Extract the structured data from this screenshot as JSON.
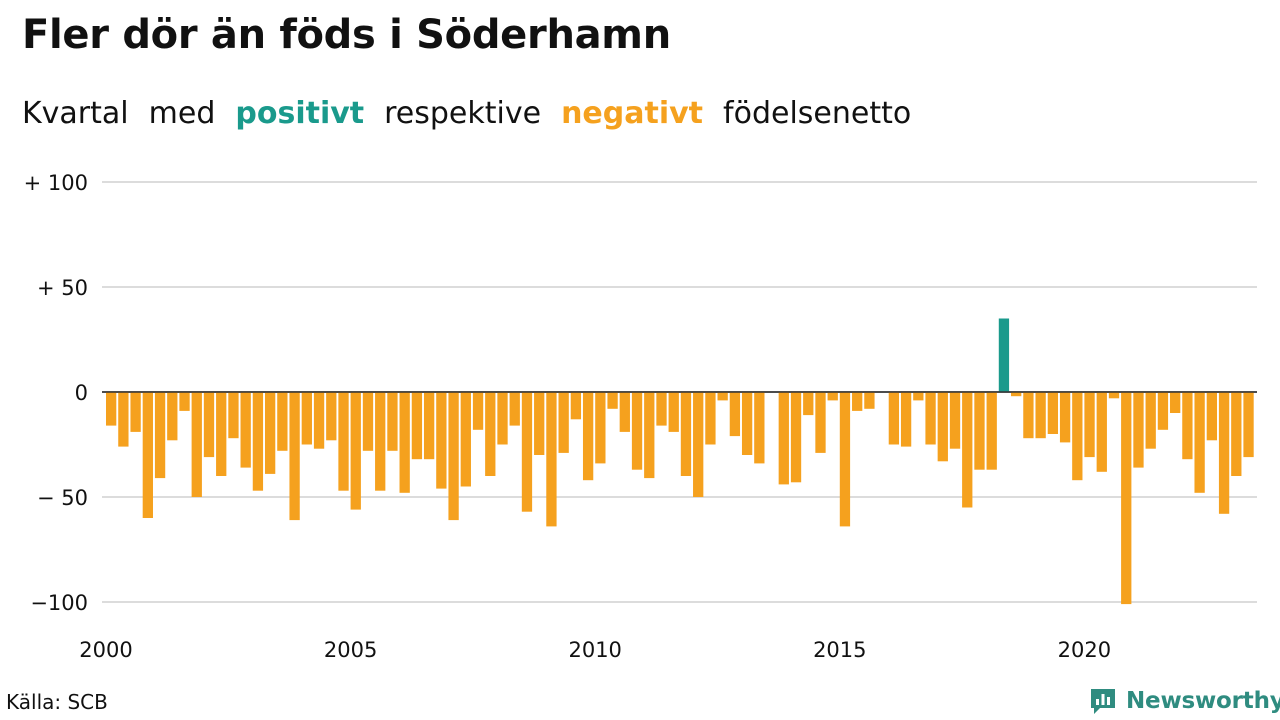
{
  "header": {
    "title": "Fler dör än föds i Söderhamn",
    "subtitle_words": [
      "Kvartal",
      "med",
      "positivt",
      "respektive",
      "negativt",
      "födelsenetto"
    ]
  },
  "footer": {
    "source": "Källa: SCB",
    "brand": "Newsworthy",
    "brand_icon": "bar-chart-speech-bubble-icon"
  },
  "colors": {
    "positive": "#1a9a8c",
    "negative": "#f5a11e",
    "grid": "#dcdcdc",
    "brand": "#2f8c80"
  },
  "chart_data": {
    "type": "bar",
    "title": "Fler dör än föds i Söderhamn",
    "subtitle": "Kvartal med positivt respektive negativt födelsenetto",
    "xlabel": "",
    "ylabel": "",
    "ylim": [
      -100,
      100
    ],
    "yticks": [
      {
        "value": 100,
        "label": "+ 100"
      },
      {
        "value": 50,
        "label": "+  50"
      },
      {
        "value": 0,
        "label": "0"
      },
      {
        "value": -50,
        "label": "− 50"
      },
      {
        "value": -100,
        "label": "−100"
      }
    ],
    "x_start": "2000",
    "x_step": "quarter",
    "xticks": [
      "2000",
      "2005",
      "2010",
      "2015",
      "2020"
    ],
    "grid": true,
    "values": [
      -16,
      -26,
      -19,
      -60,
      -41,
      -23,
      -9,
      -50,
      -31,
      -40,
      -22,
      -36,
      -47,
      -39,
      -28,
      -61,
      -25,
      -27,
      -23,
      -47,
      -56,
      -28,
      -47,
      -28,
      -48,
      -32,
      -32,
      -46,
      -61,
      -45,
      -18,
      -40,
      -25,
      -16,
      -57,
      -30,
      -64,
      -29,
      -13,
      -42,
      -34,
      -8,
      -19,
      -37,
      -41,
      -16,
      -19,
      -40,
      -50,
      -25,
      -4,
      -21,
      -30,
      -34,
      0,
      -44,
      -43,
      -11,
      -29,
      -4,
      -64,
      -9,
      -8,
      0,
      -25,
      -26,
      -4,
      -25,
      -33,
      -27,
      -55,
      -37,
      -37,
      35,
      -2,
      -22,
      -22,
      -20,
      -24,
      -42,
      -31,
      -38,
      -3,
      -101,
      -36,
      -27,
      -18,
      -10,
      -32,
      -48,
      -23,
      -58,
      -40,
      -31
    ]
  }
}
